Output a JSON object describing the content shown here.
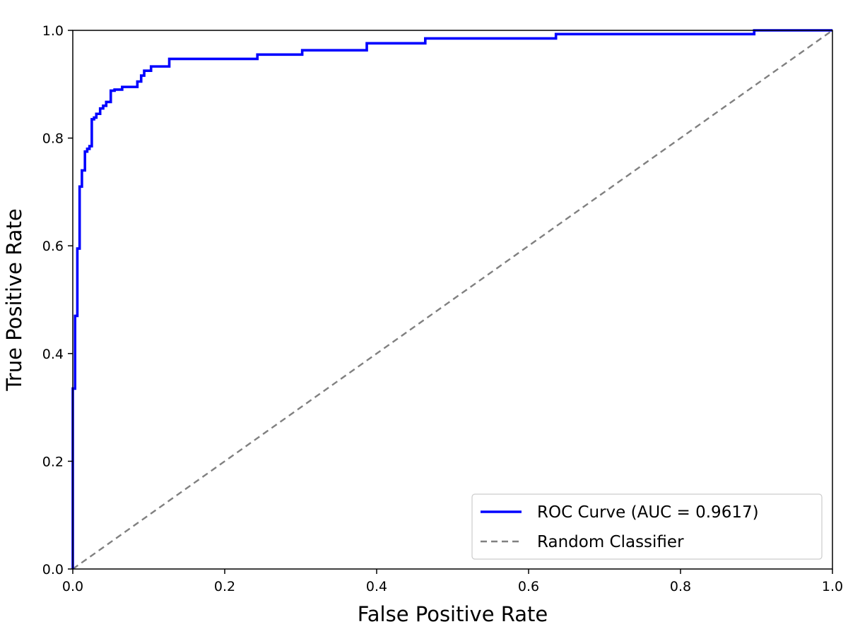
{
  "chart_data": {
    "type": "line",
    "title": "",
    "xlabel": "False Positive Rate",
    "ylabel": "True Positive Rate",
    "xlim": [
      0.0,
      1.0
    ],
    "ylim": [
      0.0,
      1.0
    ],
    "grid": false,
    "legend_position": "bottom-right",
    "x_ticks": [
      "0.0",
      "0.2",
      "0.4",
      "0.6",
      "0.8",
      "1.0"
    ],
    "y_ticks": [
      "0.0",
      "0.2",
      "0.4",
      "0.6",
      "0.8",
      "1.0"
    ],
    "series": [
      {
        "name": "ROC Curve (AUC = 0.9617)",
        "color": "#0000ff",
        "style": "solid",
        "x": [
          0.0,
          0.0,
          0.003,
          0.003,
          0.006,
          0.006,
          0.009,
          0.009,
          0.012,
          0.012,
          0.016,
          0.016,
          0.019,
          0.019,
          0.022,
          0.022,
          0.025,
          0.025,
          0.028,
          0.028,
          0.031,
          0.031,
          0.036,
          0.036,
          0.04,
          0.04,
          0.044,
          0.044,
          0.05,
          0.05,
          0.055,
          0.055,
          0.065,
          0.065,
          0.085,
          0.085,
          0.09,
          0.09,
          0.094,
          0.094,
          0.103,
          0.103,
          0.127,
          0.127,
          0.243,
          0.243,
          0.302,
          0.302,
          0.387,
          0.387,
          0.464,
          0.464,
          0.636,
          0.636,
          0.897,
          0.897,
          1.0
        ],
        "y": [
          0.0,
          0.335,
          0.335,
          0.47,
          0.47,
          0.595,
          0.595,
          0.71,
          0.71,
          0.74,
          0.74,
          0.775,
          0.775,
          0.78,
          0.78,
          0.785,
          0.785,
          0.835,
          0.835,
          0.838,
          0.838,
          0.845,
          0.845,
          0.855,
          0.855,
          0.86,
          0.86,
          0.867,
          0.867,
          0.888,
          0.888,
          0.89,
          0.89,
          0.895,
          0.895,
          0.905,
          0.905,
          0.916,
          0.916,
          0.925,
          0.925,
          0.933,
          0.933,
          0.947,
          0.947,
          0.955,
          0.955,
          0.963,
          0.963,
          0.976,
          0.976,
          0.985,
          0.985,
          0.993,
          0.993,
          1.0,
          1.0
        ]
      },
      {
        "name": "Random Classifier",
        "color": "#808080",
        "style": "dashed",
        "x": [
          0.0,
          1.0
        ],
        "y": [
          0.0,
          1.0
        ]
      }
    ]
  }
}
